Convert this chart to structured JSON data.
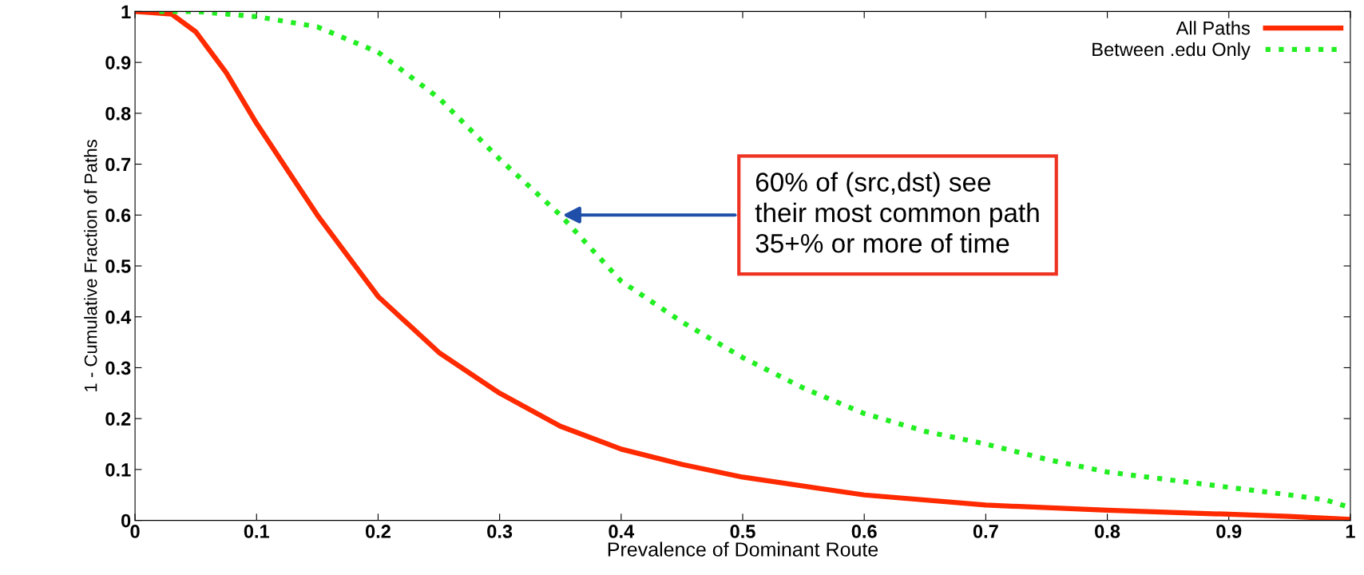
{
  "chart_data": {
    "type": "line",
    "xlabel": "Prevalence of Dominant Route",
    "ylabel": "1 - Cumulative Fraction of Paths",
    "xlim": [
      0,
      1
    ],
    "ylim": [
      0,
      1
    ],
    "xticks": [
      0,
      0.1,
      0.2,
      0.3,
      0.4,
      0.5,
      0.6,
      0.7,
      0.8,
      0.9,
      1
    ],
    "yticks": [
      0,
      0.1,
      0.2,
      0.3,
      0.4,
      0.5,
      0.6,
      0.7,
      0.8,
      0.9,
      1
    ],
    "grid": false,
    "legend": "top right",
    "marker": "none",
    "series": [
      {
        "name": "All Paths",
        "color": "#ff2a00",
        "line_style": "solid",
        "x": [
          0,
          0.03,
          0.05,
          0.075,
          0.1,
          0.125,
          0.15,
          0.175,
          0.2,
          0.25,
          0.3,
          0.35,
          0.4,
          0.45,
          0.5,
          0.6,
          0.7,
          0.8,
          0.9,
          0.95,
          1
        ],
        "values": [
          1,
          0.995,
          0.96,
          0.88,
          0.78,
          0.69,
          0.6,
          0.52,
          0.44,
          0.33,
          0.25,
          0.185,
          0.14,
          0.11,
          0.085,
          0.05,
          0.03,
          0.02,
          0.012,
          0.008,
          0.002
        ]
      },
      {
        "name": "Between .edu Only",
        "color": "#22ee22",
        "line_style": "dotted",
        "x": [
          0.02,
          0.05,
          0.1,
          0.15,
          0.2,
          0.25,
          0.3,
          0.35,
          0.4,
          0.45,
          0.5,
          0.55,
          0.6,
          0.65,
          0.7,
          0.75,
          0.8,
          0.85,
          0.9,
          0.95,
          0.98,
          1
        ],
        "values": [
          1,
          1,
          0.99,
          0.97,
          0.92,
          0.83,
          0.71,
          0.6,
          0.47,
          0.39,
          0.32,
          0.26,
          0.21,
          0.175,
          0.15,
          0.12,
          0.095,
          0.08,
          0.065,
          0.05,
          0.04,
          0.025
        ]
      }
    ],
    "annotations": [
      {
        "text": "60% of (src,dst) see\ntheir most common path\n35+% or more of time",
        "x": 0.35,
        "y": 0.6
      }
    ]
  }
}
